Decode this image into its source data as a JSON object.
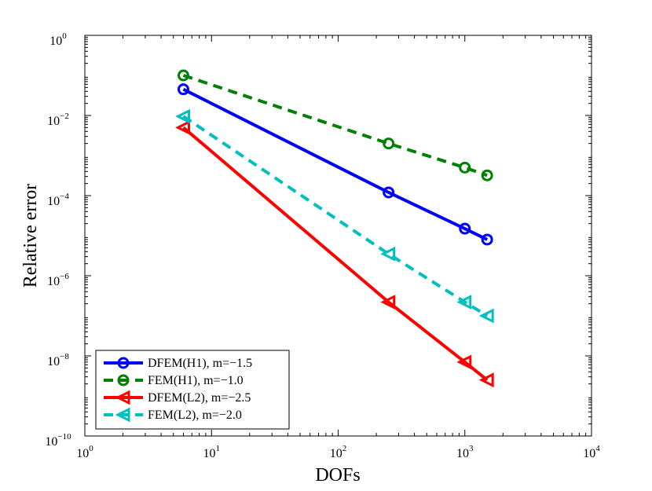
{
  "chart_data": {
    "type": "line",
    "title": "",
    "xlabel": "DOFs",
    "ylabel": "Relative error",
    "xscale": "log",
    "yscale": "log",
    "xlim": [
      1,
      10000
    ],
    "ylim": [
      1e-10,
      1
    ],
    "x_ticks": [
      {
        "value": 1,
        "base": "10",
        "exp": "0"
      },
      {
        "value": 10,
        "base": "10",
        "exp": "1"
      },
      {
        "value": 100,
        "base": "10",
        "exp": "2"
      },
      {
        "value": 1000,
        "base": "10",
        "exp": "3"
      },
      {
        "value": 10000,
        "base": "10",
        "exp": "4"
      }
    ],
    "y_ticks": [
      {
        "value": 1e-10,
        "base": "10",
        "exp": "−10"
      },
      {
        "value": 1e-08,
        "base": "10",
        "exp": "−8"
      },
      {
        "value": 1e-06,
        "base": "10",
        "exp": "−6"
      },
      {
        "value": 0.0001,
        "base": "10",
        "exp": "−4"
      },
      {
        "value": 0.01,
        "base": "10",
        "exp": "−2"
      },
      {
        "value": 1,
        "base": "10",
        "exp": "0"
      }
    ],
    "legend_position": "bottom-left",
    "series": [
      {
        "name": "DFEM(H1), m=−1.5",
        "color": "#0000ff",
        "dash": "solid",
        "marker": "circle",
        "x": [
          6,
          250,
          1000,
          1500
        ],
        "y": [
          0.045,
          0.00012,
          1.5e-05,
          8e-06
        ]
      },
      {
        "name": "FEM(H1), m=−1.0",
        "color": "#008000",
        "dash": "dashed",
        "marker": "circle",
        "x": [
          6,
          250,
          1000,
          1500
        ],
        "y": [
          0.1,
          0.002,
          0.0005,
          0.00032
        ]
      },
      {
        "name": "DFEM(L2), m=−2.5",
        "color": "#ff0000",
        "dash": "solid",
        "marker": "triangle-left",
        "x": [
          6,
          250,
          1000,
          1500
        ],
        "y": [
          0.005,
          2.2e-07,
          7e-09,
          2.5e-09
        ]
      },
      {
        "name": "FEM(L2), m=−2.0",
        "color": "#00bfbf",
        "dash": "dashed",
        "marker": "triangle-left",
        "x": [
          6,
          250,
          1000,
          1500
        ],
        "y": [
          0.0095,
          3.5e-06,
          2.2e-07,
          1e-07
        ]
      }
    ]
  }
}
